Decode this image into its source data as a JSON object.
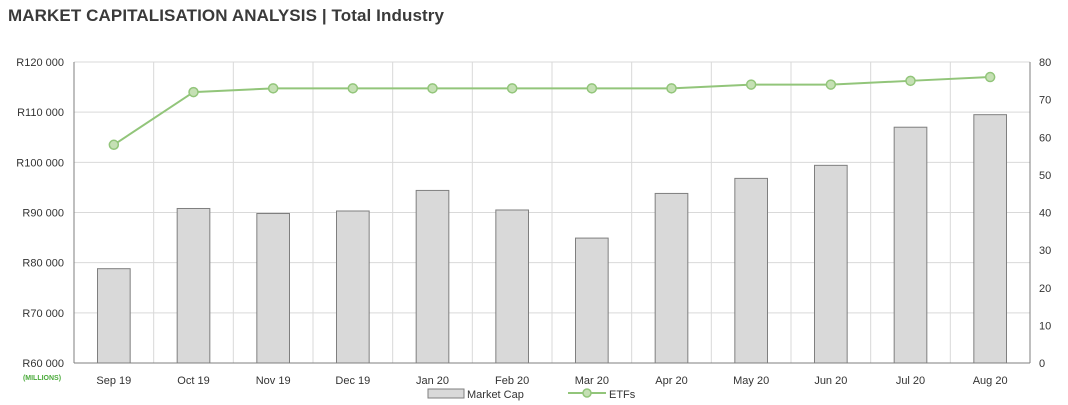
{
  "title": "MARKET CAPITALISATION ANALYSIS | Total Industry",
  "chart_data": {
    "type": "bar",
    "categories": [
      "Sep 19",
      "Oct 19",
      "Nov 19",
      "Dec 19",
      "Jan 20",
      "Feb 20",
      "Mar 20",
      "Apr 20",
      "May 20",
      "Jun 20",
      "Jul 20",
      "Aug 20"
    ],
    "series": [
      {
        "name": "Market Cap",
        "type": "bar",
        "axis": "left",
        "values": [
          78800,
          90800,
          89800,
          90300,
          94400,
          90500,
          84900,
          93800,
          96800,
          99400,
          107000,
          109500
        ]
      },
      {
        "name": "ETFs",
        "type": "line",
        "axis": "right",
        "values": [
          58,
          72,
          73,
          73,
          73,
          73,
          73,
          73,
          74,
          74,
          75,
          76
        ]
      }
    ],
    "y_left": {
      "ylim": [
        60000,
        120000
      ],
      "ticks": [
        "R60 000",
        "R70 000",
        "R80 000",
        "R90 000",
        "R100 000",
        "R110 000",
        "R120 000"
      ],
      "unit_label": "(MILLIONS)"
    },
    "y_right": {
      "ylim": [
        0,
        80
      ],
      "ticks": [
        "0",
        "10",
        "20",
        "30",
        "40",
        "50",
        "60",
        "70",
        "80"
      ]
    },
    "grid": true,
    "legend": "bottom",
    "colors": {
      "bar_fill": "#d9d9d9",
      "bar_stroke": "#7f7f7f",
      "line": "#92c57a",
      "marker_fill": "#c5e0b4",
      "unit_label": "#4aaa3a"
    }
  }
}
